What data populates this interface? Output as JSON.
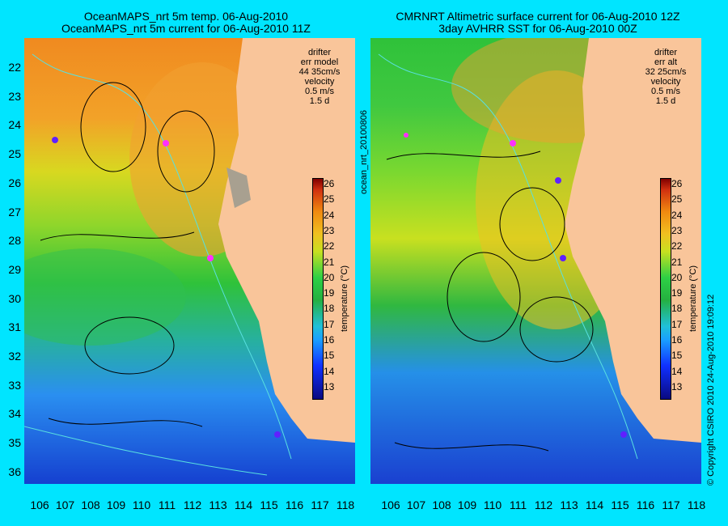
{
  "left_panel": {
    "title_line1": "OceanMAPS_nrt 5m temp. 06-Aug-2010",
    "title_line2": "OceanMAPS_nrt 5m current for 06-Aug-2010 11Z",
    "legend": {
      "drifter": "drifter",
      "err_label": "err model",
      "err_value": "44 35cm/s",
      "velocity": "velocity",
      "speed": "0.5 m/s",
      "duration": "1.5 d"
    }
  },
  "right_panel": {
    "title_line1": "CMRNRT Altimetric surface current for 06-Aug-2010 12Z",
    "title_line2": "3day AVHRR SST for 06-Aug-2010 00Z",
    "legend": {
      "drifter": "drifter",
      "err_label": "err alt",
      "err_value": "32 25cm/s",
      "velocity": "velocity",
      "speed": "0.5 m/s",
      "duration": "1.5 d"
    }
  },
  "middle_vertical_text": "ocean_nrt_20100806",
  "right_vertical_text": "© Copyright CSIRO 2010    24-Aug-2010 19:09:12",
  "colorbar": {
    "label": "temperature (°C)",
    "ticks": [
      "26",
      "25",
      "24",
      "23",
      "22",
      "21",
      "20",
      "19",
      "18",
      "17",
      "16",
      "15",
      "14",
      "13"
    ]
  },
  "y_axis": [
    "22",
    "23",
    "24",
    "25",
    "26",
    "27",
    "28",
    "29",
    "30",
    "31",
    "32",
    "33",
    "34",
    "35",
    "36"
  ],
  "x_axis": [
    "106",
    "107",
    "108",
    "109",
    "110",
    "111",
    "112",
    "113",
    "114",
    "115",
    "116",
    "117",
    "118"
  ],
  "colors": {
    "frame": "#00e5ff",
    "land": "#f9c59a",
    "drifter": "#ff2fff",
    "contour": "#59e0e0"
  }
}
